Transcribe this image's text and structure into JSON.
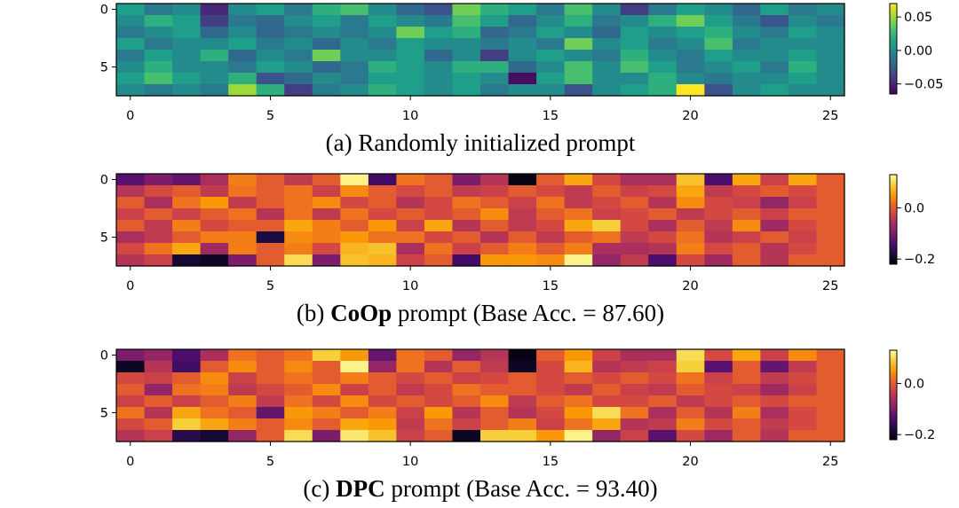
{
  "chart_data": [
    {
      "type": "heatmap",
      "colormap": "viridis",
      "caption": {
        "prefix": "(a) Randomly initialized prompt",
        "bold": "",
        "suffix": ""
      },
      "rows": 8,
      "cols": 26,
      "xticks": [
        0,
        5,
        10,
        15,
        20,
        25
      ],
      "yticks": [
        0,
        5
      ],
      "vmin": -0.065,
      "vmax": 0.07,
      "colorbar_ticks": [
        {
          "value": 0.05,
          "label": "0.05"
        },
        {
          "value": 0.0,
          "label": "0.00"
        },
        {
          "value": -0.05,
          "label": "−0.05"
        }
      ],
      "values": [
        [
          0.01,
          -0.01,
          0.0,
          -0.05,
          0.0,
          0.01,
          -0.01,
          0.02,
          0.03,
          0.0,
          -0.02,
          -0.03,
          0.04,
          0.02,
          0.01,
          -0.01,
          0.03,
          0.0,
          -0.04,
          -0.01,
          0.01,
          0.0,
          -0.02,
          0.01,
          -0.01,
          0.0
        ],
        [
          0.0,
          0.02,
          0.01,
          -0.04,
          -0.01,
          -0.02,
          0.0,
          0.01,
          -0.01,
          0.01,
          0.0,
          -0.01,
          0.03,
          0.01,
          -0.02,
          0.0,
          0.02,
          -0.01,
          0.0,
          0.02,
          0.04,
          0.01,
          -0.01,
          -0.03,
          0.0,
          -0.01
        ],
        [
          -0.01,
          0.0,
          0.01,
          -0.02,
          0.0,
          -0.02,
          -0.01,
          0.0,
          -0.01,
          0.0,
          0.04,
          0.01,
          0.02,
          -0.02,
          -0.01,
          0.01,
          0.0,
          -0.02,
          0.01,
          0.0,
          0.01,
          0.02,
          0.0,
          -0.01,
          0.01,
          0.0
        ],
        [
          0.01,
          -0.01,
          0.0,
          0.0,
          0.01,
          -0.01,
          0.0,
          -0.02,
          0.0,
          -0.01,
          0.01,
          0.0,
          0.0,
          -0.01,
          0.0,
          -0.01,
          0.04,
          0.0,
          0.01,
          -0.01,
          0.0,
          0.03,
          -0.01,
          0.0,
          0.0,
          0.0
        ],
        [
          -0.01,
          0.01,
          0.0,
          0.02,
          -0.02,
          0.0,
          -0.01,
          0.04,
          0.0,
          0.0,
          0.01,
          -0.02,
          0.0,
          -0.04,
          0.0,
          0.01,
          0.0,
          -0.01,
          0.02,
          0.0,
          -0.01,
          0.01,
          0.0,
          0.0,
          0.01,
          0.0
        ],
        [
          0.0,
          0.02,
          0.0,
          0.0,
          -0.01,
          0.01,
          0.0,
          -0.02,
          -0.01,
          0.02,
          0.01,
          0.0,
          0.02,
          0.02,
          -0.02,
          0.0,
          0.03,
          0.0,
          0.03,
          0.01,
          -0.01,
          0.0,
          0.01,
          -0.01,
          0.02,
          0.0
        ],
        [
          0.01,
          0.03,
          0.01,
          0.0,
          0.02,
          -0.03,
          -0.02,
          0.0,
          -0.01,
          0.01,
          0.01,
          0.0,
          0.01,
          0.0,
          -0.06,
          0.01,
          0.03,
          0.0,
          0.0,
          0.02,
          0.0,
          -0.01,
          0.0,
          0.0,
          0.01,
          0.0
        ],
        [
          0.0,
          -0.01,
          0.0,
          -0.01,
          0.05,
          0.02,
          -0.04,
          -0.01,
          0.0,
          0.02,
          0.01,
          0.0,
          0.01,
          -0.01,
          0.0,
          0.0,
          -0.03,
          0.0,
          0.01,
          0.02,
          0.07,
          -0.03,
          0.0,
          0.01,
          0.0,
          0.0
        ]
      ]
    },
    {
      "type": "heatmap",
      "colormap": "inferno",
      "caption": {
        "prefix": "(b) ",
        "bold": "CoOp",
        "suffix": " prompt (Base Acc. = 87.60)"
      },
      "rows": 8,
      "cols": 26,
      "xticks": [
        0,
        5,
        10,
        15,
        20,
        25
      ],
      "yticks": [
        0,
        5
      ],
      "vmin": -0.22,
      "vmax": 0.13,
      "colorbar_ticks": [
        {
          "value": 0.0,
          "label": "0.0"
        },
        {
          "value": -0.2,
          "label": "−0.2"
        }
      ],
      "values": [
        [
          -0.13,
          -0.1,
          -0.12,
          -0.06,
          0.03,
          0.0,
          -0.04,
          0.0,
          0.12,
          -0.15,
          0.02,
          0.0,
          -0.1,
          -0.05,
          -0.21,
          0.0,
          0.06,
          -0.02,
          -0.06,
          -0.06,
          0.08,
          -0.14,
          0.06,
          -0.03,
          0.06,
          0.0
        ],
        [
          -0.05,
          -0.02,
          0.0,
          -0.04,
          0.02,
          0.0,
          0.02,
          -0.03,
          0.04,
          0.0,
          -0.02,
          0.0,
          -0.04,
          -0.03,
          0.0,
          -0.02,
          -0.04,
          0.0,
          -0.03,
          -0.02,
          0.06,
          -0.04,
          -0.02,
          0.0,
          -0.02,
          0.0
        ],
        [
          0.0,
          -0.06,
          0.02,
          0.05,
          -0.04,
          0.0,
          0.02,
          0.04,
          -0.02,
          0.0,
          -0.05,
          -0.02,
          0.02,
          0.0,
          -0.03,
          0.02,
          -0.04,
          -0.02,
          0.0,
          -0.05,
          0.04,
          -0.02,
          -0.03,
          -0.08,
          -0.03,
          0.0
        ],
        [
          -0.03,
          0.0,
          -0.03,
          0.0,
          0.02,
          -0.05,
          0.02,
          -0.04,
          0.02,
          -0.02,
          0.0,
          -0.02,
          0.0,
          0.04,
          -0.04,
          0.0,
          0.02,
          -0.03,
          -0.02,
          0.0,
          -0.04,
          -0.02,
          0.0,
          -0.03,
          0.0,
          0.0
        ],
        [
          0.0,
          -0.04,
          0.03,
          -0.02,
          0.0,
          0.0,
          0.06,
          0.03,
          0.0,
          0.05,
          -0.03,
          0.06,
          -0.05,
          0.0,
          -0.04,
          -0.02,
          0.06,
          0.09,
          -0.02,
          -0.06,
          0.0,
          -0.04,
          0.04,
          -0.07,
          -0.02,
          0.0
        ],
        [
          -0.06,
          -0.04,
          0.0,
          0.03,
          0.03,
          -0.18,
          0.04,
          0.03,
          0.05,
          0.02,
          0.02,
          -0.02,
          0.0,
          -0.05,
          0.0,
          -0.04,
          0.0,
          0.02,
          -0.04,
          -0.02,
          0.02,
          -0.05,
          -0.03,
          0.0,
          -0.03,
          0.0
        ],
        [
          -0.02,
          0.02,
          0.06,
          -0.07,
          0.03,
          0.0,
          0.03,
          -0.02,
          0.07,
          0.08,
          -0.06,
          0.02,
          -0.03,
          0.0,
          0.03,
          0.0,
          0.03,
          -0.06,
          -0.06,
          -0.05,
          0.03,
          -0.02,
          0.0,
          -0.05,
          -0.02,
          0.0
        ],
        [
          -0.05,
          -0.03,
          -0.19,
          -0.2,
          -0.1,
          0.0,
          0.1,
          -0.1,
          0.08,
          0.07,
          -0.03,
          0.0,
          -0.15,
          0.05,
          0.05,
          0.04,
          0.12,
          -0.08,
          -0.04,
          -0.14,
          -0.02,
          -0.07,
          0.0,
          -0.05,
          0.0,
          0.0
        ]
      ]
    },
    {
      "type": "heatmap",
      "colormap": "inferno",
      "caption": {
        "prefix": "(c) ",
        "bold": "DPC",
        "suffix": " prompt (Base Acc. = 93.40)"
      },
      "rows": 8,
      "cols": 26,
      "xticks": [
        0,
        5,
        10,
        15,
        20,
        25
      ],
      "yticks": [
        0,
        5
      ],
      "vmin": -0.22,
      "vmax": 0.13,
      "colorbar_ticks": [
        {
          "value": 0.0,
          "label": "0.0"
        },
        {
          "value": -0.2,
          "label": "−0.2"
        }
      ],
      "values": [
        [
          -0.1,
          -0.08,
          -0.14,
          -0.06,
          0.02,
          0.0,
          0.02,
          0.09,
          0.05,
          -0.12,
          0.02,
          0.0,
          -0.08,
          -0.05,
          -0.21,
          0.0,
          0.05,
          -0.03,
          -0.06,
          -0.06,
          0.1,
          -0.02,
          0.06,
          -0.03,
          0.04,
          0.0
        ],
        [
          -0.2,
          -0.05,
          -0.15,
          0.0,
          0.04,
          0.0,
          0.04,
          0.0,
          0.12,
          -0.08,
          0.02,
          -0.05,
          0.0,
          -0.04,
          -0.2,
          -0.02,
          0.07,
          -0.05,
          -0.04,
          -0.03,
          0.09,
          -0.13,
          0.0,
          -0.12,
          -0.04,
          0.0
        ],
        [
          -0.02,
          -0.03,
          0.0,
          0.04,
          -0.03,
          0.0,
          0.02,
          0.0,
          0.03,
          0.0,
          -0.02,
          0.0,
          -0.03,
          -0.02,
          0.0,
          -0.02,
          0.0,
          -0.02,
          0.0,
          -0.02,
          0.02,
          -0.03,
          0.0,
          -0.04,
          -0.02,
          0.0
        ],
        [
          0.0,
          -0.08,
          0.02,
          0.03,
          -0.04,
          -0.02,
          0.0,
          0.04,
          -0.03,
          0.0,
          -0.04,
          -0.02,
          0.02,
          0.0,
          0.0,
          -0.02,
          -0.04,
          0.0,
          -0.03,
          -0.04,
          0.0,
          -0.02,
          -0.03,
          -0.07,
          -0.03,
          0.0
        ],
        [
          -0.03,
          0.0,
          -0.03,
          0.0,
          0.03,
          -0.04,
          0.02,
          -0.02,
          0.04,
          -0.02,
          0.0,
          -0.02,
          0.0,
          0.04,
          -0.04,
          0.0,
          0.02,
          -0.02,
          -0.02,
          0.0,
          -0.04,
          -0.02,
          0.0,
          -0.02,
          0.0,
          0.0
        ],
        [
          0.02,
          -0.05,
          0.06,
          0.02,
          0.0,
          -0.12,
          0.05,
          0.03,
          0.0,
          0.03,
          -0.03,
          0.05,
          -0.05,
          0.0,
          -0.05,
          -0.02,
          0.05,
          0.1,
          0.02,
          -0.06,
          0.0,
          -0.05,
          0.03,
          -0.06,
          -0.02,
          0.0
        ],
        [
          -0.02,
          0.0,
          0.09,
          0.06,
          0.03,
          0.0,
          0.04,
          0.0,
          0.06,
          0.05,
          -0.04,
          0.02,
          -0.03,
          0.0,
          0.03,
          -0.03,
          0.02,
          0.06,
          -0.05,
          -0.04,
          0.03,
          -0.02,
          0.0,
          -0.04,
          -0.02,
          0.0
        ],
        [
          -0.05,
          -0.03,
          -0.17,
          -0.19,
          -0.08,
          0.0,
          0.1,
          -0.1,
          0.11,
          0.08,
          -0.03,
          0.0,
          -0.2,
          0.09,
          0.09,
          0.05,
          0.12,
          -0.08,
          -0.03,
          -0.13,
          -0.02,
          -0.07,
          0.0,
          -0.05,
          0.0,
          0.0
        ]
      ]
    }
  ]
}
